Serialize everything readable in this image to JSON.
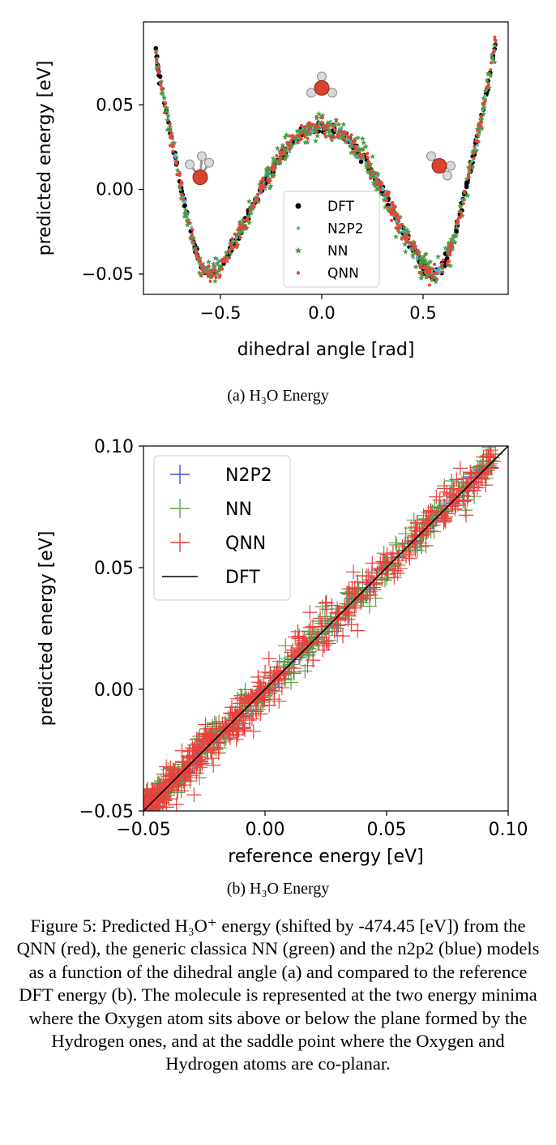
{
  "figure": {
    "caption": "Figure 5: Predicted H₃O⁺ energy (shifted by -474.45 [eV]) from the QNN (red), the generic classica NN (green) and the n2p2 (blue) models as a function of the dihedral angle (a) and compared to the reference DFT energy (b). The molecule is represented at the two energy minima where the Oxygen atom sits above or below the plane formed by the Hydrogen ones, and at the saddle point where the Oxygen and Hydrogen atoms are co-planar."
  },
  "chart_data": [
    {
      "type": "scatter",
      "subcaption": "(a) H₃O Energy",
      "xlabel": "dihedral angle [rad]",
      "ylabel": "predicted energy [eV]",
      "xlim": [
        -0.88,
        0.92
      ],
      "ylim": [
        -0.062,
        0.099
      ],
      "xticks": [
        -0.5,
        0.0,
        0.5
      ],
      "xtick_labels": [
        "−0.5",
        "0.0",
        "0.5"
      ],
      "yticks": [
        -0.05,
        0.0,
        0.05
      ],
      "ytick_labels": [
        "−0.05",
        "0.00",
        "0.05"
      ],
      "grid": false,
      "legend_position": "lower-center",
      "x_range": [
        -0.82,
        0.86
      ],
      "curve_samples": {
        "x": [
          -0.82,
          -0.75,
          -0.7,
          -0.65,
          -0.6,
          -0.55,
          -0.5,
          -0.4,
          -0.3,
          -0.2,
          -0.1,
          0.0,
          0.1,
          0.2,
          0.3,
          0.4,
          0.5,
          0.55,
          0.6,
          0.65,
          0.7,
          0.75,
          0.8,
          0.86
        ],
        "y": [
          0.08,
          0.035,
          0.005,
          -0.025,
          -0.045,
          -0.05,
          -0.046,
          -0.025,
          0.0,
          0.02,
          0.033,
          0.038,
          0.033,
          0.02,
          0.0,
          -0.025,
          -0.046,
          -0.051,
          -0.045,
          -0.03,
          -0.005,
          0.02,
          0.05,
          0.088
        ]
      },
      "series": [
        {
          "name": "DFT",
          "marker": "circle",
          "color": "#000000"
        },
        {
          "name": "N2P2",
          "marker": "dot",
          "color": "#4fb7c9"
        },
        {
          "name": "NN",
          "marker": "star",
          "color": "#4f9a3e"
        },
        {
          "name": "QNN",
          "marker": "dot",
          "color": "#e0483b"
        }
      ],
      "molecules": [
        {
          "x": -0.6,
          "y": 0.011,
          "pose": "oxygen-below"
        },
        {
          "x": 0.0,
          "y": 0.06,
          "pose": "co-planar"
        },
        {
          "x": 0.58,
          "y": 0.013,
          "pose": "oxygen-above"
        }
      ]
    },
    {
      "type": "scatter",
      "subcaption": "(b) H₃O Energy",
      "xlabel": "reference energy [eV]",
      "ylabel": "predicted energy [eV]",
      "xlim": [
        -0.05,
        0.1
      ],
      "ylim": [
        -0.05,
        0.1
      ],
      "xticks": [
        -0.05,
        0.0,
        0.05,
        0.1
      ],
      "xtick_labels": [
        "−0.05",
        "0.00",
        "0.05",
        "0.10"
      ],
      "yticks": [
        -0.05,
        0.0,
        0.05,
        0.1
      ],
      "ytick_labels": [
        "−0.05",
        "0.00",
        "0.05",
        "0.10"
      ],
      "grid": false,
      "legend_position": "upper-left",
      "series": [
        {
          "name": "N2P2",
          "marker": "plus",
          "color": "#3a4fe0"
        },
        {
          "name": "NN",
          "marker": "plus",
          "color": "#5aa04a"
        },
        {
          "name": "QNN",
          "marker": "plus",
          "color": "#ee3e3e"
        },
        {
          "name": "DFT",
          "marker": "line",
          "color": "#000000"
        }
      ],
      "dft_line": {
        "x": [
          -0.05,
          0.1
        ],
        "y": [
          -0.05,
          0.1
        ]
      }
    }
  ],
  "colors": {
    "oxygen": "#d8432f",
    "hydrogen": "#d9d9d9",
    "axis": "#000000"
  }
}
